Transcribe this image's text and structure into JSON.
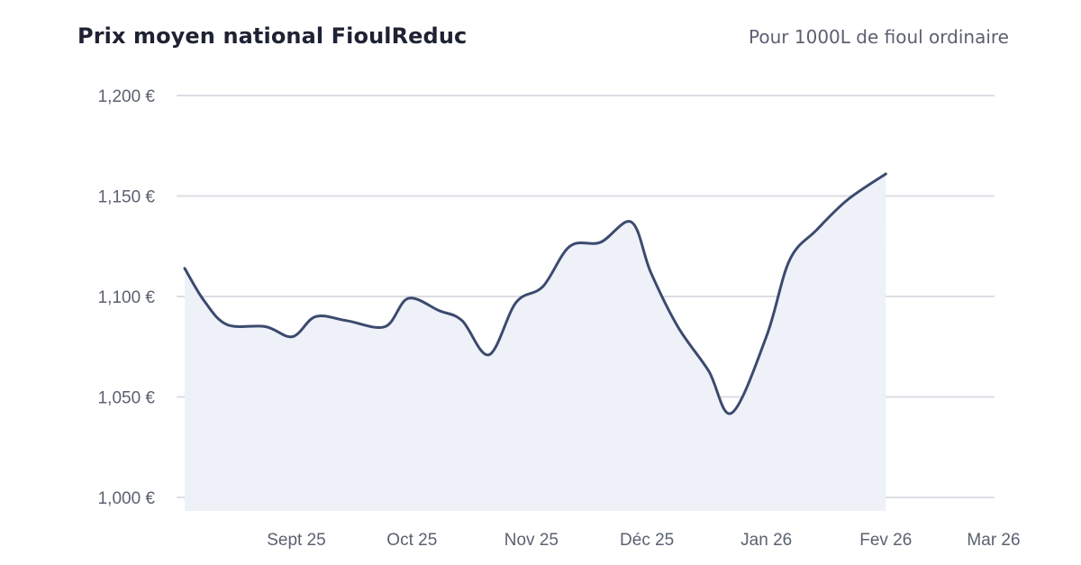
{
  "chart_data": {
    "type": "area",
    "title": "Prix moyen national FioulReduc",
    "subtitle": "Pour 1000L de fioul ordinaire",
    "xlabel": "",
    "ylabel": "",
    "ylim": [
      1000,
      1200
    ],
    "yticks": [
      {
        "value": 1000,
        "label": "1,000 €"
      },
      {
        "value": 1050,
        "label": "1,050 €"
      },
      {
        "value": 1100,
        "label": "1,100 €"
      },
      {
        "value": 1150,
        "label": "1,150 €"
      },
      {
        "value": 1200,
        "label": "1,200 €"
      }
    ],
    "xlim": [
      "2025-08-03",
      "2026-03-01"
    ],
    "xticks": [
      {
        "value": "2025-09-01",
        "label": "Sept 25"
      },
      {
        "value": "2025-10-01",
        "label": "Oct 25"
      },
      {
        "value": "2025-11-01",
        "label": "Nov 25"
      },
      {
        "value": "2025-12-01",
        "label": "Déc 25"
      },
      {
        "value": "2026-01-01",
        "label": "Jan 26"
      },
      {
        "value": "2026-02-01",
        "label": "Fev 26"
      },
      {
        "value": "2026-03-01",
        "label": "Mar 26"
      }
    ],
    "grid": true,
    "series": [
      {
        "values": [
          {
            "x": "2025-08-03",
            "y": 1114
          },
          {
            "x": "2025-08-08",
            "y": 1098
          },
          {
            "x": "2025-08-14",
            "y": 1086
          },
          {
            "x": "2025-08-24",
            "y": 1085
          },
          {
            "x": "2025-08-31",
            "y": 1080
          },
          {
            "x": "2025-09-06",
            "y": 1090
          },
          {
            "x": "2025-09-14",
            "y": 1088
          },
          {
            "x": "2025-09-24",
            "y": 1085
          },
          {
            "x": "2025-09-30",
            "y": 1099
          },
          {
            "x": "2025-10-08",
            "y": 1093
          },
          {
            "x": "2025-10-14",
            "y": 1088
          },
          {
            "x": "2025-10-21",
            "y": 1071
          },
          {
            "x": "2025-10-28",
            "y": 1097
          },
          {
            "x": "2025-11-04",
            "y": 1105
          },
          {
            "x": "2025-11-11",
            "y": 1125
          },
          {
            "x": "2025-11-19",
            "y": 1127
          },
          {
            "x": "2025-11-27",
            "y": 1137
          },
          {
            "x": "2025-12-02",
            "y": 1112
          },
          {
            "x": "2025-12-09",
            "y": 1085
          },
          {
            "x": "2025-12-17",
            "y": 1063
          },
          {
            "x": "2025-12-23",
            "y": 1042
          },
          {
            "x": "2026-01-01",
            "y": 1080
          },
          {
            "x": "2026-01-07",
            "y": 1118
          },
          {
            "x": "2026-01-14",
            "y": 1133
          },
          {
            "x": "2026-01-22",
            "y": 1148
          },
          {
            "x": "2026-02-01",
            "y": 1161
          }
        ]
      }
    ],
    "line_color": "#3c4a6e",
    "fill_color": "#eef1f8",
    "grid_color": "#dcdde4"
  }
}
